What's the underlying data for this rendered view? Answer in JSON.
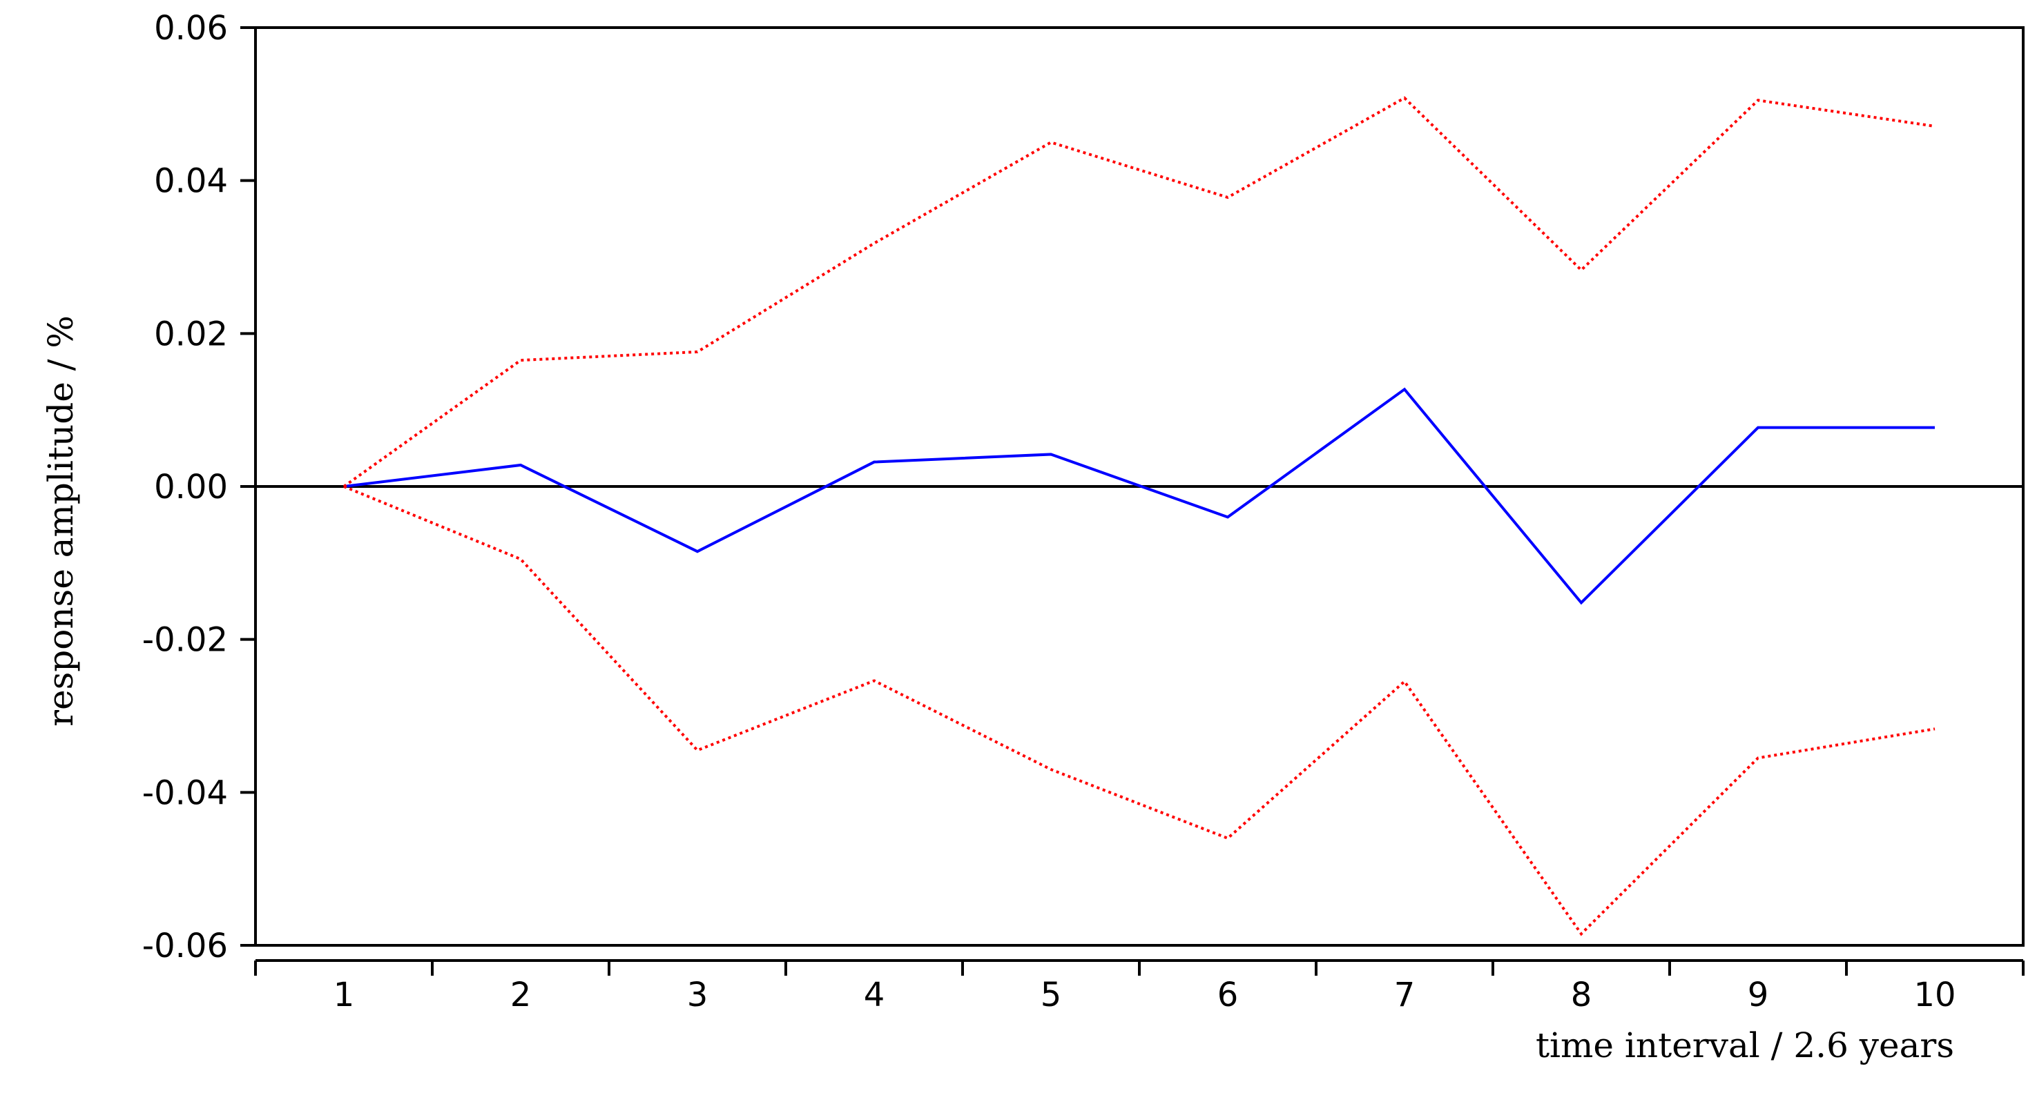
{
  "chart_data": {
    "type": "line",
    "title": "",
    "xlabel": "time interval / 2.6 years",
    "ylabel": "response amplitude / %",
    "x": [
      1,
      2,
      3,
      4,
      5,
      6,
      7,
      8,
      9,
      10
    ],
    "xlim": [
      0.5,
      10.5
    ],
    "ylim": [
      -0.06,
      0.06
    ],
    "x_ticks": [
      "1",
      "2",
      "3",
      "4",
      "5",
      "6",
      "7",
      "8",
      "9",
      "10"
    ],
    "y_ticks": [
      {
        "value": 0.06,
        "label": "0.06"
      },
      {
        "value": 0.04,
        "label": "0.04"
      },
      {
        "value": 0.02,
        "label": "0.02"
      },
      {
        "value": 0.0,
        "label": "0.00"
      },
      {
        "value": -0.02,
        "label": "-0.02"
      },
      {
        "value": -0.04,
        "label": "-0.04"
      },
      {
        "value": -0.06,
        "label": "-0.06"
      }
    ],
    "zero_line": true,
    "grid": false,
    "legend": "none",
    "series": [
      {
        "key": "response",
        "color": "#0000ff",
        "style": "solid",
        "values": [
          0.0,
          0.0028,
          -0.0085,
          0.0032,
          0.0042,
          -0.004,
          0.0127,
          -0.0152,
          0.0077,
          0.0077
        ]
      },
      {
        "key": "upper-band",
        "color": "#ff0000",
        "style": "dotted",
        "values": [
          0.0,
          0.0165,
          0.0176,
          0.0318,
          0.045,
          0.0378,
          0.0508,
          0.0283,
          0.0505,
          0.0471
        ]
      },
      {
        "key": "lower-band",
        "color": "#ff0000",
        "style": "dotted",
        "values": [
          0.0,
          -0.0095,
          -0.0345,
          -0.0254,
          -0.037,
          -0.046,
          -0.0255,
          -0.0585,
          -0.0355,
          -0.0317
        ]
      }
    ]
  }
}
